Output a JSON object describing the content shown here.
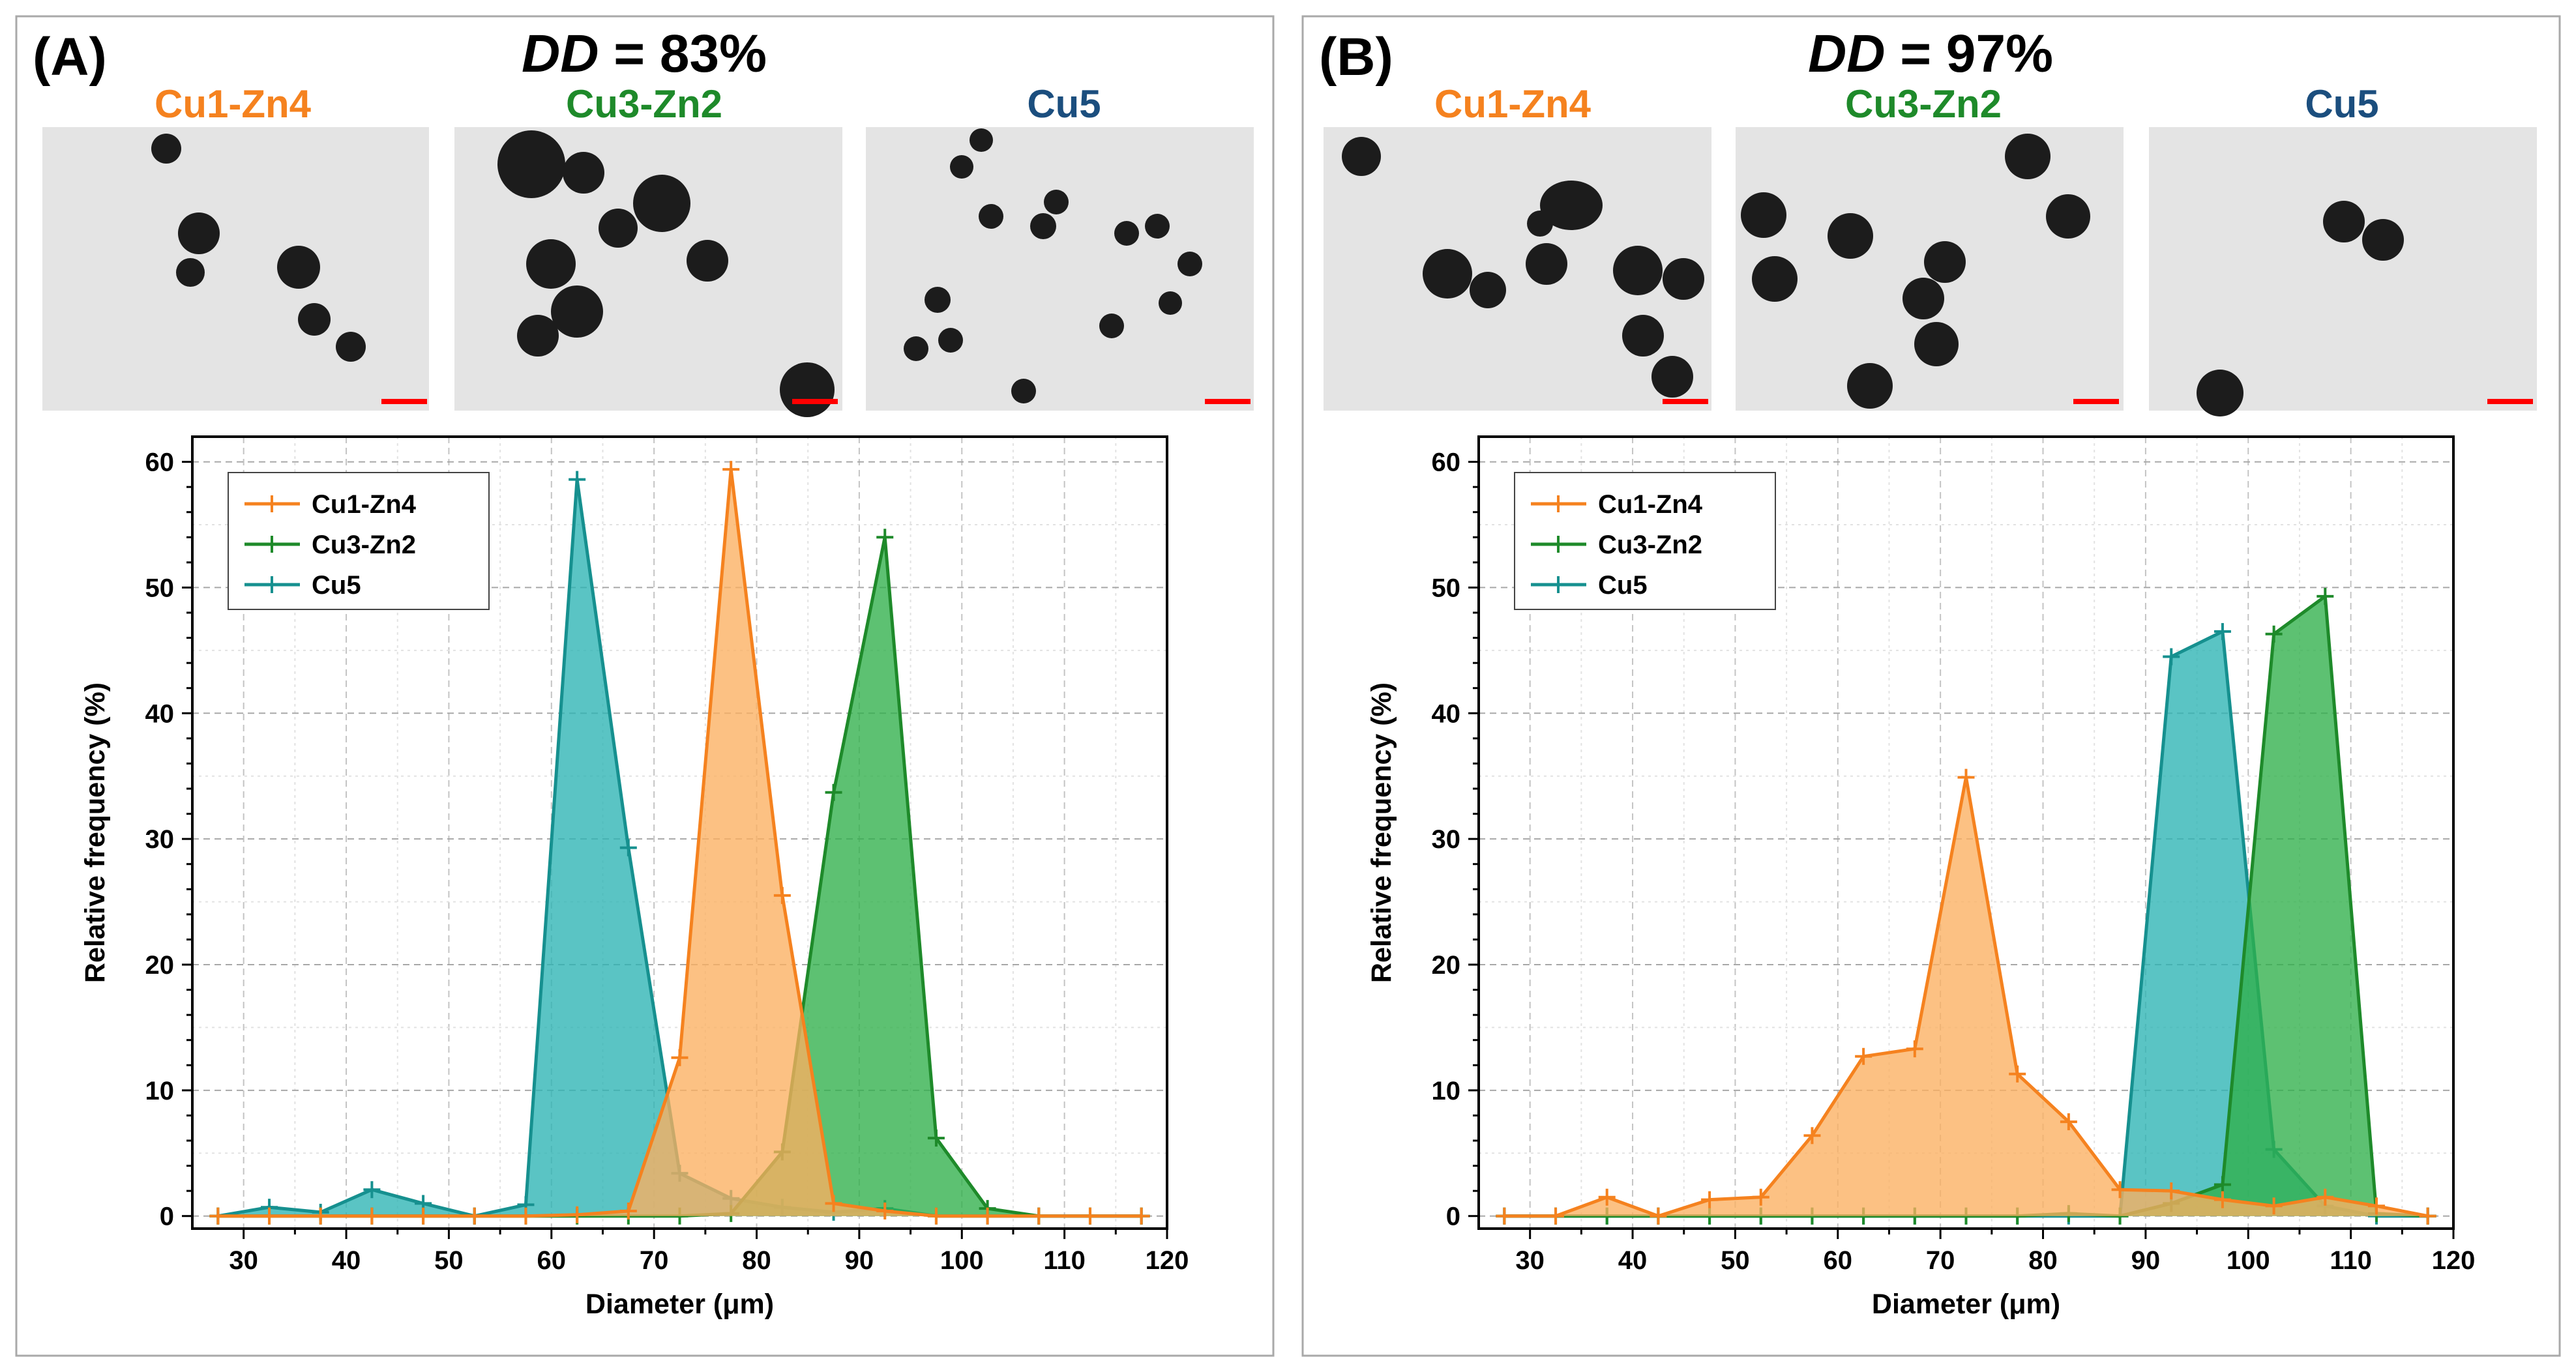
{
  "figure": {
    "colors": {
      "Cu1-Zn4": "#f5821f",
      "Cu3-Zn2": "#1e8a2a",
      "Cu5": "#16908f",
      "Cu1-Zn4_fill": "#fbb060",
      "Cu3-Zn2_fill": "#2fb04a",
      "Cu5_fill": "#2bb3b3",
      "Cu5_label": "#1b4e7e",
      "scalebar": "#ff0000"
    },
    "panels": [
      {
        "letter": "(A)",
        "dd_prefix": "DD",
        "dd_suffix": " = 83%",
        "photo_labels": [
          "Cu1-Zn4",
          "Cu3-Zn2",
          "Cu5"
        ]
      },
      {
        "letter": "(B)",
        "dd_prefix": "DD",
        "dd_suffix": " = 97%",
        "photo_labels": [
          "Cu1-Zn4",
          "Cu3-Zn2",
          "Cu5"
        ]
      }
    ]
  },
  "chart_data": [
    {
      "type": "area",
      "title": "DD = 83%",
      "xlabel": "Diameter (μm)",
      "ylabel": "Relative frequency (%)",
      "xlim": [
        25,
        120
      ],
      "ylim": [
        -1,
        62
      ],
      "xticks": [
        30,
        40,
        50,
        60,
        70,
        80,
        90,
        100,
        110,
        120
      ],
      "yticks": [
        0,
        10,
        20,
        30,
        40,
        50,
        60
      ],
      "legend_position": "top-left",
      "x": [
        27.5,
        32.5,
        37.5,
        42.5,
        47.5,
        52.5,
        57.5,
        62.5,
        67.5,
        72.5,
        77.5,
        82.5,
        87.5,
        92.5,
        97.5,
        102.5,
        107.5,
        112.5,
        117.5
      ],
      "series": [
        {
          "name": "Cu1-Zn4",
          "values": [
            0,
            0,
            0,
            0,
            0,
            0,
            0,
            0.1,
            0.4,
            12.6,
            59.4,
            25.5,
            1.0,
            0.4,
            0,
            0,
            0,
            0,
            0
          ]
        },
        {
          "name": "Cu3-Zn2",
          "values": [
            0,
            0,
            0,
            0,
            0,
            0,
            0,
            0,
            0,
            0,
            0.2,
            5.1,
            33.7,
            54.0,
            6.2,
            0.6,
            0,
            0,
            0
          ]
        },
        {
          "name": "Cu5",
          "values": [
            0,
            0.7,
            0.3,
            2.1,
            1.0,
            0,
            0.9,
            58.6,
            29.3,
            3.4,
            1.4,
            0.7,
            0.3,
            0.6,
            0,
            0,
            0,
            0,
            0
          ]
        }
      ]
    },
    {
      "type": "area",
      "title": "DD = 97%",
      "xlabel": "Diameter (μm)",
      "ylabel": "Relative frequency (%)",
      "xlim": [
        25,
        120
      ],
      "ylim": [
        -1,
        62
      ],
      "xticks": [
        30,
        40,
        50,
        60,
        70,
        80,
        90,
        100,
        110,
        120
      ],
      "yticks": [
        0,
        10,
        20,
        30,
        40,
        50,
        60
      ],
      "legend_position": "top-left",
      "x": [
        27.5,
        32.5,
        37.5,
        42.5,
        47.5,
        52.5,
        57.5,
        62.5,
        67.5,
        72.5,
        77.5,
        82.5,
        87.5,
        92.5,
        97.5,
        102.5,
        107.5,
        112.5,
        117.5
      ],
      "series": [
        {
          "name": "Cu1-Zn4",
          "values": [
            0,
            0,
            1.5,
            0,
            1.3,
            1.5,
            6.4,
            12.7,
            13.3,
            34.9,
            11.3,
            7.5,
            2.1,
            2.0,
            1.3,
            0.8,
            1.5,
            0.8,
            0
          ]
        },
        {
          "name": "Cu3-Zn2",
          "values": [
            0,
            0,
            0,
            0,
            0,
            0,
            0,
            0,
            0,
            0,
            0,
            0.2,
            0,
            1.0,
            2.5,
            46.3,
            49.3,
            0.2,
            0
          ]
        },
        {
          "name": "Cu5",
          "values": [
            0,
            0,
            0,
            0,
            0,
            0,
            0,
            0,
            0,
            0,
            0,
            0,
            0,
            44.5,
            46.5,
            5.3,
            0.8,
            0,
            0
          ]
        }
      ]
    }
  ]
}
